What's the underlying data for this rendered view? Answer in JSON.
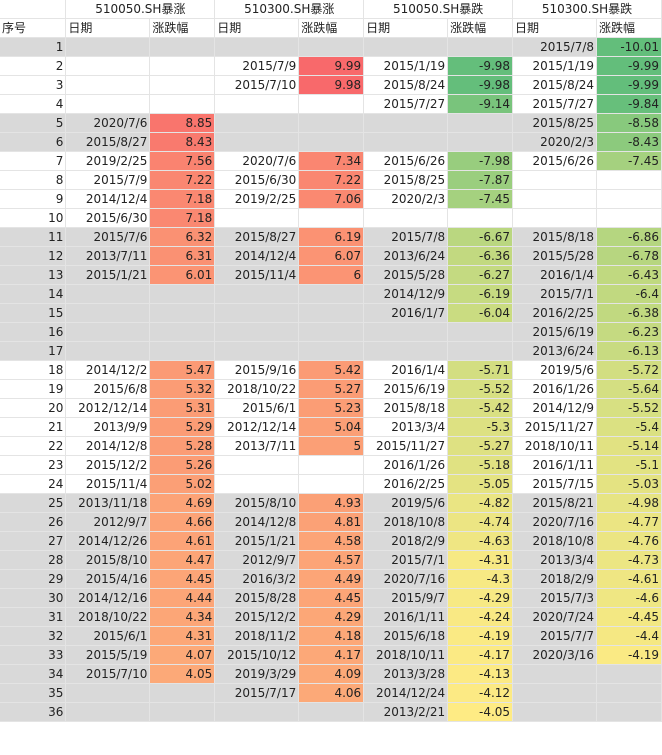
{
  "group_headers": [
    "510050.SH暴涨",
    "510300.SH暴涨",
    "510050.SH暴跌",
    "510300.SH暴跌"
  ],
  "column_headers": [
    "序号",
    "日期",
    "涨跌幅",
    "日期",
    "涨跌幅",
    "日期",
    "涨跌幅",
    "日期",
    "涨跌幅"
  ],
  "colors": {
    "up_max": "#f8696b",
    "up_min": "#fcaa78",
    "down_max": "#63be7b",
    "down_min": "#ffeb84",
    "band_gray": "#d9d9d9",
    "band_white": "#ffffff"
  },
  "bands": [
    "gray",
    "white",
    "white",
    "white",
    "gray",
    "gray",
    "white",
    "white",
    "white",
    "white",
    "gray",
    "gray",
    "gray",
    "gray",
    "gray",
    "gray",
    "gray",
    "white",
    "white",
    "white",
    "white",
    "white",
    "white",
    "white",
    "gray",
    "gray",
    "gray",
    "gray",
    "gray",
    "gray",
    "gray",
    "gray",
    "gray",
    "gray",
    "gray",
    "gray"
  ],
  "rows": [
    {
      "seq": "1",
      "d1": "",
      "v1": "",
      "d2": "",
      "v2": "",
      "d3": "",
      "v3": "",
      "d4": "2015/7/8",
      "v4": "-10.01"
    },
    {
      "seq": "2",
      "d1": "",
      "v1": "",
      "d2": "2015/7/9",
      "v2": "9.99",
      "d3": "2015/1/19",
      "v3": "-9.98",
      "d4": "2015/1/19",
      "v4": "-9.99"
    },
    {
      "seq": "3",
      "d1": "",
      "v1": "",
      "d2": "2015/7/10",
      "v2": "9.98",
      "d3": "2015/8/24",
      "v3": "-9.98",
      "d4": "2015/8/24",
      "v4": "-9.99"
    },
    {
      "seq": "4",
      "d1": "",
      "v1": "",
      "d2": "",
      "v2": "",
      "d3": "2015/7/27",
      "v3": "-9.14",
      "d4": "2015/7/27",
      "v4": "-9.84"
    },
    {
      "seq": "5",
      "d1": "2020/7/6",
      "v1": "8.85",
      "d2": "",
      "v2": "",
      "d3": "",
      "v3": "",
      "d4": "2015/8/25",
      "v4": "-8.58"
    },
    {
      "seq": "6",
      "d1": "2015/8/27",
      "v1": "8.43",
      "d2": "",
      "v2": "",
      "d3": "",
      "v3": "",
      "d4": "2020/2/3",
      "v4": "-8.43"
    },
    {
      "seq": "7",
      "d1": "2019/2/25",
      "v1": "7.56",
      "d2": "2020/7/6",
      "v2": "7.34",
      "d3": "2015/6/26",
      "v3": "-7.98",
      "d4": "2015/6/26",
      "v4": "-7.45"
    },
    {
      "seq": "8",
      "d1": "2015/7/9",
      "v1": "7.22",
      "d2": "2015/6/30",
      "v2": "7.22",
      "d3": "2015/8/25",
      "v3": "-7.87",
      "d4": "",
      "v4": ""
    },
    {
      "seq": "9",
      "d1": "2014/12/4",
      "v1": "7.18",
      "d2": "2019/2/25",
      "v2": "7.06",
      "d3": "2020/2/3",
      "v3": "-7.45",
      "d4": "",
      "v4": ""
    },
    {
      "seq": "10",
      "d1": "2015/6/30",
      "v1": "7.18",
      "d2": "",
      "v2": "",
      "d3": "",
      "v3": "",
      "d4": "",
      "v4": ""
    },
    {
      "seq": "11",
      "d1": "2015/7/6",
      "v1": "6.32",
      "d2": "2015/8/27",
      "v2": "6.19",
      "d3": "2015/7/8",
      "v3": "-6.67",
      "d4": "2015/8/18",
      "v4": "-6.86"
    },
    {
      "seq": "12",
      "d1": "2013/7/11",
      "v1": "6.31",
      "d2": "2014/12/4",
      "v2": "6.07",
      "d3": "2013/6/24",
      "v3": "-6.36",
      "d4": "2015/5/28",
      "v4": "-6.78"
    },
    {
      "seq": "13",
      "d1": "2015/1/21",
      "v1": "6.01",
      "d2": "2015/11/4",
      "v2": "6",
      "d3": "2015/5/28",
      "v3": "-6.27",
      "d4": "2016/1/4",
      "v4": "-6.43"
    },
    {
      "seq": "14",
      "d1": "",
      "v1": "",
      "d2": "",
      "v2": "",
      "d3": "2014/12/9",
      "v3": "-6.19",
      "d4": "2015/7/1",
      "v4": "-6.4"
    },
    {
      "seq": "15",
      "d1": "",
      "v1": "",
      "d2": "",
      "v2": "",
      "d3": "2016/1/7",
      "v3": "-6.04",
      "d4": "2016/2/25",
      "v4": "-6.38"
    },
    {
      "seq": "16",
      "d1": "",
      "v1": "",
      "d2": "",
      "v2": "",
      "d3": "",
      "v3": "",
      "d4": "2015/6/19",
      "v4": "-6.23"
    },
    {
      "seq": "17",
      "d1": "",
      "v1": "",
      "d2": "",
      "v2": "",
      "d3": "",
      "v3": "",
      "d4": "2013/6/24",
      "v4": "-6.13"
    },
    {
      "seq": "18",
      "d1": "2014/12/2",
      "v1": "5.47",
      "d2": "2015/9/16",
      "v2": "5.42",
      "d3": "2016/1/4",
      "v3": "-5.71",
      "d4": "2019/5/6",
      "v4": "-5.72"
    },
    {
      "seq": "19",
      "d1": "2015/6/8",
      "v1": "5.32",
      "d2": "2018/10/22",
      "v2": "5.27",
      "d3": "2015/6/19",
      "v3": "-5.52",
      "d4": "2016/1/26",
      "v4": "-5.64"
    },
    {
      "seq": "20",
      "d1": "2012/12/14",
      "v1": "5.31",
      "d2": "2015/6/1",
      "v2": "5.23",
      "d3": "2015/8/18",
      "v3": "-5.42",
      "d4": "2014/12/9",
      "v4": "-5.52"
    },
    {
      "seq": "21",
      "d1": "2013/9/9",
      "v1": "5.29",
      "d2": "2012/12/14",
      "v2": "5.04",
      "d3": "2013/3/4",
      "v3": "-5.3",
      "d4": "2015/11/27",
      "v4": "-5.4"
    },
    {
      "seq": "22",
      "d1": "2014/12/8",
      "v1": "5.28",
      "d2": "2013/7/11",
      "v2": "5",
      "d3": "2015/11/27",
      "v3": "-5.27",
      "d4": "2018/10/11",
      "v4": "-5.14"
    },
    {
      "seq": "23",
      "d1": "2015/12/2",
      "v1": "5.26",
      "d2": "",
      "v2": "",
      "d3": "2016/1/26",
      "v3": "-5.18",
      "d4": "2016/1/11",
      "v4": "-5.1"
    },
    {
      "seq": "24",
      "d1": "2015/11/4",
      "v1": "5.02",
      "d2": "",
      "v2": "",
      "d3": "2016/2/25",
      "v3": "-5.05",
      "d4": "2015/7/15",
      "v4": "-5.03"
    },
    {
      "seq": "25",
      "d1": "2013/11/18",
      "v1": "4.69",
      "d2": "2015/8/10",
      "v2": "4.93",
      "d3": "2019/5/6",
      "v3": "-4.82",
      "d4": "2015/8/21",
      "v4": "-4.98"
    },
    {
      "seq": "26",
      "d1": "2012/9/7",
      "v1": "4.66",
      "d2": "2014/12/8",
      "v2": "4.81",
      "d3": "2018/10/8",
      "v3": "-4.74",
      "d4": "2020/7/16",
      "v4": "-4.77"
    },
    {
      "seq": "27",
      "d1": "2014/12/26",
      "v1": "4.61",
      "d2": "2015/1/21",
      "v2": "4.58",
      "d3": "2018/2/9",
      "v3": "-4.63",
      "d4": "2018/10/8",
      "v4": "-4.76"
    },
    {
      "seq": "28",
      "d1": "2015/8/10",
      "v1": "4.47",
      "d2": "2012/9/7",
      "v2": "4.57",
      "d3": "2015/7/1",
      "v3": "-4.31",
      "d4": "2013/3/4",
      "v4": "-4.73"
    },
    {
      "seq": "29",
      "d1": "2015/4/16",
      "v1": "4.45",
      "d2": "2016/3/2",
      "v2": "4.49",
      "d3": "2020/7/16",
      "v3": "-4.3",
      "d4": "2018/2/9",
      "v4": "-4.61"
    },
    {
      "seq": "30",
      "d1": "2014/12/16",
      "v1": "4.44",
      "d2": "2015/8/28",
      "v2": "4.45",
      "d3": "2015/9/7",
      "v3": "-4.29",
      "d4": "2015/7/3",
      "v4": "-4.6"
    },
    {
      "seq": "31",
      "d1": "2018/10/22",
      "v1": "4.34",
      "d2": "2015/12/2",
      "v2": "4.29",
      "d3": "2016/1/11",
      "v3": "-4.24",
      "d4": "2020/7/24",
      "v4": "-4.45"
    },
    {
      "seq": "32",
      "d1": "2015/6/1",
      "v1": "4.31",
      "d2": "2018/11/2",
      "v2": "4.18",
      "d3": "2015/6/18",
      "v3": "-4.19",
      "d4": "2015/7/7",
      "v4": "-4.4"
    },
    {
      "seq": "33",
      "d1": "2015/5/19",
      "v1": "4.07",
      "d2": "2015/10/12",
      "v2": "4.17",
      "d3": "2018/10/11",
      "v3": "-4.17",
      "d4": "2020/3/16",
      "v4": "-4.19"
    },
    {
      "seq": "34",
      "d1": "2015/7/10",
      "v1": "4.05",
      "d2": "2019/3/29",
      "v2": "4.09",
      "d3": "2013/3/28",
      "v3": "-4.13",
      "d4": "",
      "v4": ""
    },
    {
      "seq": "35",
      "d1": "",
      "v1": "",
      "d2": "2015/7/17",
      "v2": "4.06",
      "d3": "2014/12/24",
      "v3": "-4.12",
      "d4": "",
      "v4": ""
    },
    {
      "seq": "36",
      "d1": "",
      "v1": "",
      "d2": "",
      "v2": "",
      "d3": "2013/2/21",
      "v3": "-4.05",
      "d4": "",
      "v4": ""
    }
  ]
}
